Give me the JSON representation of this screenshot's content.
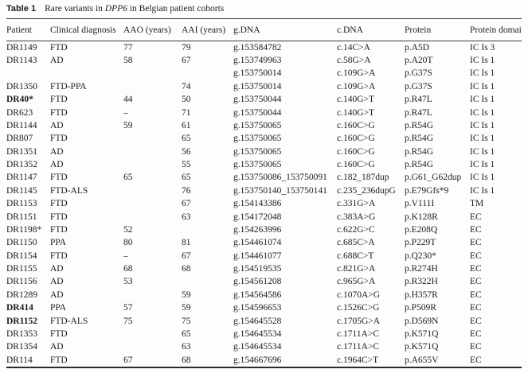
{
  "caption": {
    "label": "Table 1",
    "pre": "Rare variants in ",
    "gene": "DPP6",
    "post": " in Belgian patient cohorts"
  },
  "table": {
    "columns": [
      "Patient",
      "Clinical diagnosis",
      "AAO (years)",
      "AAI (years)",
      "g.DNA",
      "c.DNA",
      "Protein",
      "Protein domain"
    ],
    "rows": [
      {
        "patient": "DR1149",
        "bold": false,
        "diagnosis": "FTD",
        "aao": "77",
        "aai": "79",
        "gdna": "g.153584782",
        "cdna": "c.14C>A",
        "protein": "p.A5D",
        "domain": "IC Is 3"
      },
      {
        "patient": "DR1143",
        "bold": false,
        "diagnosis": "AD",
        "aao": "58",
        "aai": "67",
        "gdna": "g.153749963",
        "cdna": "c.58G>A",
        "protein": "p.A20T",
        "domain": "IC Is 1"
      },
      {
        "patient": "",
        "bold": false,
        "diagnosis": "",
        "aao": "",
        "aai": "",
        "gdna": "g.153750014",
        "cdna": "c.109G>A",
        "protein": "p.G37S",
        "domain": "IC Is 1"
      },
      {
        "patient": "DR1350",
        "bold": false,
        "diagnosis": "FTD-PPA",
        "aao": "",
        "aai": "74",
        "gdna": "g.153750014",
        "cdna": "c.109G>A",
        "protein": "p.G37S",
        "domain": "IC Is 1"
      },
      {
        "patient": "DR40*",
        "bold": true,
        "diagnosis": "FTD",
        "aao": "44",
        "aai": "50",
        "gdna": "g.153750044",
        "cdna": "c.140G>T",
        "protein": "p.R47L",
        "domain": "IC Is 1"
      },
      {
        "patient": "DR623",
        "bold": false,
        "diagnosis": "FTD",
        "aao": "–",
        "aai": "71",
        "gdna": "g.153750044",
        "cdna": "c.140G>T",
        "protein": "p.R47L",
        "domain": "IC Is 1"
      },
      {
        "patient": "DR1144",
        "bold": false,
        "diagnosis": "AD",
        "aao": "59",
        "aai": "61",
        "gdna": "g.153750065",
        "cdna": "c.160C>G",
        "protein": "p.R54G",
        "domain": "IC Is 1"
      },
      {
        "patient": "DR807",
        "bold": false,
        "diagnosis": "FTD",
        "aao": "",
        "aai": "65",
        "gdna": "g.153750065",
        "cdna": "c.160C>G",
        "protein": "p.R54G",
        "domain": "IC Is 1"
      },
      {
        "patient": "DR1351",
        "bold": false,
        "diagnosis": "AD",
        "aao": "",
        "aai": "56",
        "gdna": "g.153750065",
        "cdna": "c.160C>G",
        "protein": "p.R54G",
        "domain": "IC Is 1"
      },
      {
        "patient": "DR1352",
        "bold": false,
        "diagnosis": "AD",
        "aao": "",
        "aai": "55",
        "gdna": "g.153750065",
        "cdna": "c.160C>G",
        "protein": "p.R54G",
        "domain": "IC Is 1"
      },
      {
        "patient": "DR1147",
        "bold": false,
        "diagnosis": "FTD",
        "aao": "65",
        "aai": "65",
        "gdna": "g.153750086_153750091",
        "cdna": "c.182_187dup",
        "protein": "p.G61_G62dup",
        "domain": "IC Is 1"
      },
      {
        "patient": "DR1145",
        "bold": false,
        "diagnosis": "FTD-ALS",
        "aao": "",
        "aai": "76",
        "gdna": "g.153750140_153750141",
        "cdna": "c.235_236dupG",
        "protein": "p.E79Gfs*9",
        "domain": "IC Is 1"
      },
      {
        "patient": "DR1153",
        "bold": false,
        "diagnosis": "FTD",
        "aao": "",
        "aai": "67",
        "gdna": "g.154143386",
        "cdna": "c.331G>A",
        "protein": "p.V111I",
        "domain": "TM"
      },
      {
        "patient": "DR1151",
        "bold": false,
        "diagnosis": "FTD",
        "aao": "",
        "aai": "63",
        "gdna": "g.154172048",
        "cdna": "c.383A>G",
        "protein": "p.K128R",
        "domain": "EC"
      },
      {
        "patient": "DR1198*",
        "bold": false,
        "diagnosis": "FTD",
        "aao": "52",
        "aai": "",
        "gdna": "g.154263996",
        "cdna": "c.622G>C",
        "protein": "p.E208Q",
        "domain": "EC"
      },
      {
        "patient": "DR1150",
        "bold": false,
        "diagnosis": "PPA",
        "aao": "80",
        "aai": "81",
        "gdna": "g.154461074",
        "cdna": "c.685C>A",
        "protein": "p.P229T",
        "domain": "EC"
      },
      {
        "patient": "DR1154",
        "bold": false,
        "diagnosis": "FTD",
        "aao": "–",
        "aai": "67",
        "gdna": "g.154461077",
        "cdna": "c.688C>T",
        "protein": "p.Q230*",
        "domain": "EC"
      },
      {
        "patient": "DR1155",
        "bold": false,
        "diagnosis": "AD",
        "aao": "68",
        "aai": "68",
        "gdna": "g.154519535",
        "cdna": "c.821G>A",
        "protein": "p.R274H",
        "domain": "EC"
      },
      {
        "patient": "DR1156",
        "bold": false,
        "diagnosis": "AD",
        "aao": "53",
        "aai": "",
        "gdna": "g.154561208",
        "cdna": "c.965G>A",
        "protein": "p.R322H",
        "domain": "EC"
      },
      {
        "patient": "DR1289",
        "bold": false,
        "diagnosis": "AD",
        "aao": "",
        "aai": "59",
        "gdna": "g.154564586",
        "cdna": "c.1070A>G",
        "protein": "p.H357R",
        "domain": "EC"
      },
      {
        "patient": "DR414",
        "bold": true,
        "diagnosis": "PPA",
        "aao": "57",
        "aai": "59",
        "gdna": "g.154596653",
        "cdna": "c.1526C>G",
        "protein": "p.P509R",
        "domain": "EC"
      },
      {
        "patient": "DR1152",
        "bold": true,
        "diagnosis": "FTD-ALS",
        "aao": "75",
        "aai": "75",
        "gdna": "g.154645528",
        "cdna": "c.1705G>A",
        "protein": "p.D569N",
        "domain": "EC"
      },
      {
        "patient": "DR1353",
        "bold": false,
        "diagnosis": "FTD",
        "aao": "",
        "aai": "65",
        "gdna": "g.154645534",
        "cdna": "c.1711A>C",
        "protein": "p.K571Q",
        "domain": "EC"
      },
      {
        "patient": "DR1354",
        "bold": false,
        "diagnosis": "AD",
        "aao": "",
        "aai": "63",
        "gdna": "g.154645534",
        "cdna": "c.1711A>C",
        "protein": "p.K571Q",
        "domain": "EC"
      },
      {
        "patient": "DR114",
        "bold": false,
        "diagnosis": "FTD",
        "aao": "67",
        "aai": "68",
        "gdna": "g.154667696",
        "cdna": "c.1964C>T",
        "protein": "p.A655V",
        "domain": "EC"
      }
    ]
  }
}
